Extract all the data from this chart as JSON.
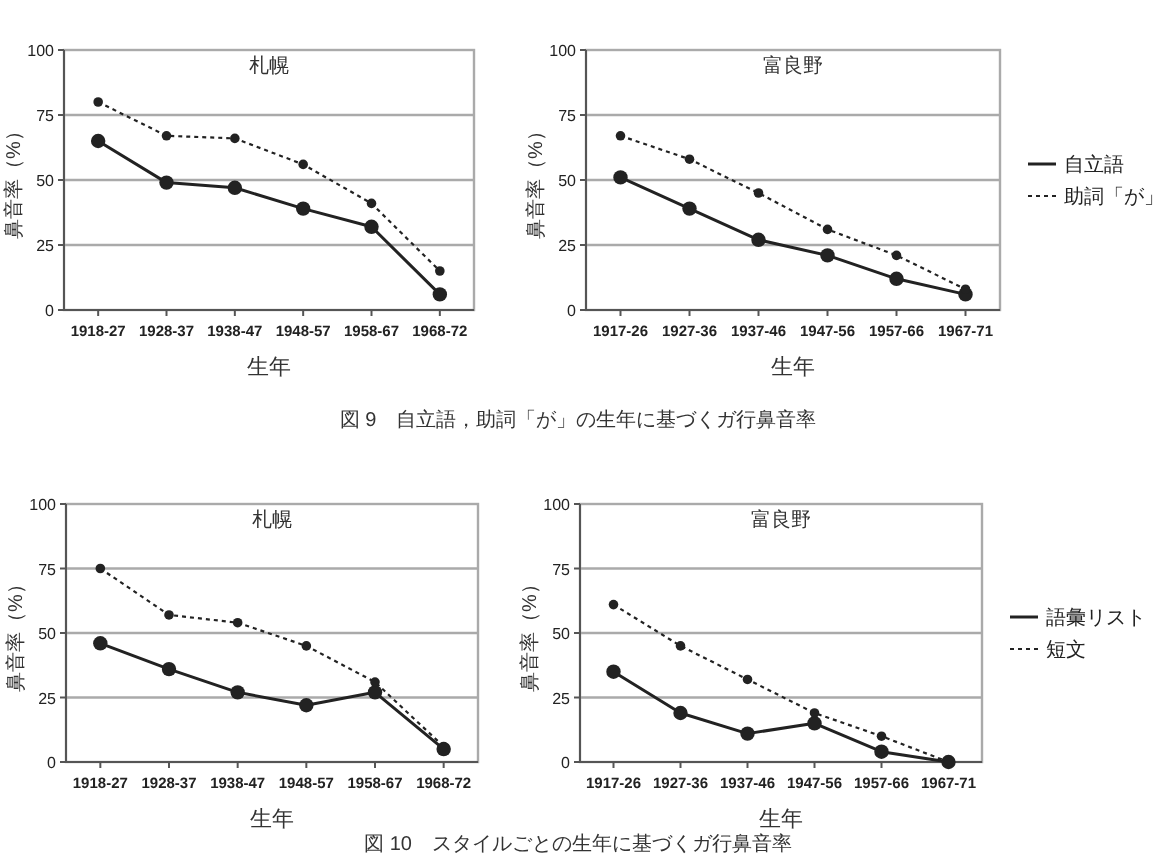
{
  "chart_data": [
    {
      "type": "line",
      "title": "札幌",
      "xlabel": "生年",
      "ylabel": "鼻音率（%）",
      "categories": [
        "1918-27",
        "1928-37",
        "1938-47",
        "1948-57",
        "1958-67",
        "1968-72"
      ],
      "ylim": [
        0,
        100
      ],
      "yticks": [
        0,
        25,
        50,
        75,
        100
      ],
      "grid": "y",
      "marker": "circle",
      "legend": false,
      "series": [
        {
          "color": "#222222",
          "line_style": "solid",
          "values": [
            65,
            49,
            47,
            39,
            32,
            6
          ]
        },
        {
          "color": "#222222",
          "line_style": "dotted",
          "values": [
            80,
            67,
            66,
            56,
            41,
            15
          ]
        }
      ]
    },
    {
      "type": "line",
      "title": "富良野",
      "xlabel": "生年",
      "ylabel": "鼻音率（%）",
      "categories": [
        "1917-26",
        "1927-36",
        "1937-46",
        "1947-56",
        "1957-66",
        "1967-71"
      ],
      "ylim": [
        0,
        100
      ],
      "yticks": [
        0,
        25,
        50,
        75,
        100
      ],
      "grid": "y",
      "marker": "circle",
      "legend": "right",
      "annotations": [
        "図 9　自立語，助詞「が」の生年に基づくガ行鼻音率"
      ],
      "series": [
        {
          "name": "自立語",
          "color": "#222222",
          "line_style": "solid",
          "values": [
            51,
            39,
            27,
            21,
            12,
            6
          ]
        },
        {
          "name": "助詞「が」",
          "color": "#222222",
          "line_style": "dotted",
          "values": [
            67,
            58,
            45,
            31,
            21,
            8
          ]
        }
      ]
    },
    {
      "type": "line",
      "title": "札幌",
      "xlabel": "生年",
      "ylabel": "鼻音率（%）",
      "categories": [
        "1918-27",
        "1928-37",
        "1938-47",
        "1948-57",
        "1958-67",
        "1968-72"
      ],
      "ylim": [
        0,
        100
      ],
      "yticks": [
        0,
        25,
        50,
        75,
        100
      ],
      "grid": "y",
      "marker": "circle",
      "legend": false,
      "series": [
        {
          "color": "#222222",
          "line_style": "solid",
          "values": [
            46,
            36,
            27,
            22,
            27,
            5
          ]
        },
        {
          "color": "#222222",
          "line_style": "dotted",
          "values": [
            75,
            57,
            54,
            45,
            31,
            6
          ]
        }
      ]
    },
    {
      "type": "line",
      "title": "富良野",
      "xlabel": "生年",
      "ylabel": "鼻音率（%）",
      "categories": [
        "1917-26",
        "1927-36",
        "1937-46",
        "1947-56",
        "1957-66",
        "1967-71"
      ],
      "ylim": [
        0,
        100
      ],
      "yticks": [
        0,
        25,
        50,
        75,
        100
      ],
      "grid": "y",
      "marker": "circle",
      "legend": "right",
      "annotations": [
        "図 10　スタイルごとの生年に基づくガ行鼻音率"
      ],
      "series": [
        {
          "name": "語彙リスト",
          "color": "#222222",
          "line_style": "solid",
          "values": [
            35,
            19,
            11,
            15,
            4,
            0
          ]
        },
        {
          "name": "短文",
          "color": "#222222",
          "line_style": "dotted",
          "values": [
            61,
            45,
            32,
            19,
            10,
            0
          ]
        }
      ]
    }
  ]
}
